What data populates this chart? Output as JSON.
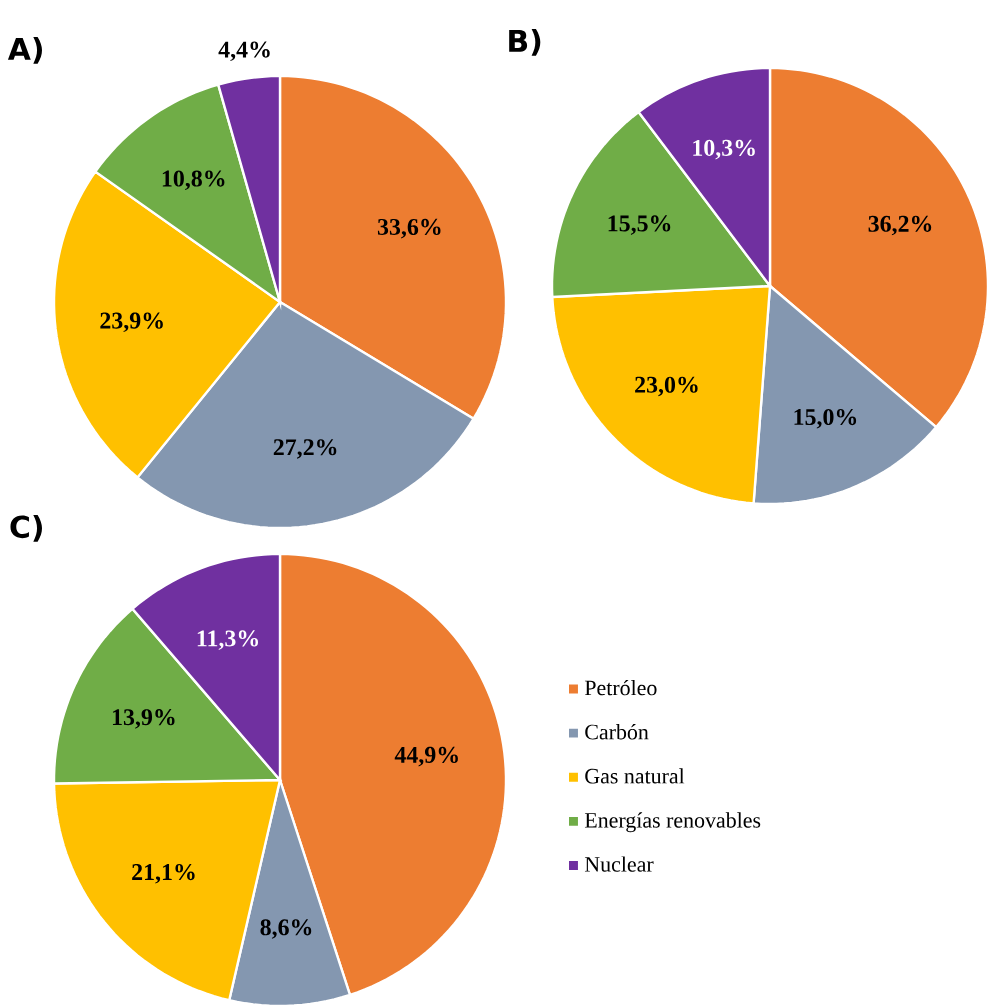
{
  "chart_data": [
    {
      "type": "pie",
      "title": "A)",
      "categories": [
        null,
        null,
        null,
        null,
        null
      ],
      "values": [
        33.6,
        27.2,
        23.9,
        10.8,
        4.4
      ],
      "value_labels": [
        "33,6%",
        "27,2%",
        "23,9%",
        "10,8%",
        "4,4%"
      ],
      "colors": [
        "#ed7d31",
        "#8497b0",
        "#ffc000",
        "#70ad47",
        "#7030a0"
      ]
    },
    {
      "type": "pie",
      "title": "B)",
      "categories": [
        null,
        null,
        null,
        null,
        null
      ],
      "values": [
        36.2,
        15.0,
        23.0,
        15.5,
        10.3
      ],
      "value_labels": [
        "36,2%",
        "15,0%",
        "23,0%",
        "15,5%",
        "10,3%"
      ],
      "colors": [
        "#ed7d31",
        "#8497b0",
        "#ffc000",
        "#70ad47",
        "#7030a0"
      ]
    },
    {
      "type": "pie",
      "title": "C)",
      "categories": [
        "Petróleo",
        "Carbón",
        "Gas natural",
        "Energías renovables",
        "Nuclear"
      ],
      "values": [
        44.9,
        8.6,
        21.1,
        13.9,
        11.3
      ],
      "value_labels": [
        "44,9%",
        "8,6%",
        "21,1%",
        "13,9%",
        "11,3%"
      ],
      "colors": [
        "#ed7d31",
        "#8497b0",
        "#ffc000",
        "#70ad47",
        "#7030a0"
      ],
      "legend": "right"
    }
  ]
}
